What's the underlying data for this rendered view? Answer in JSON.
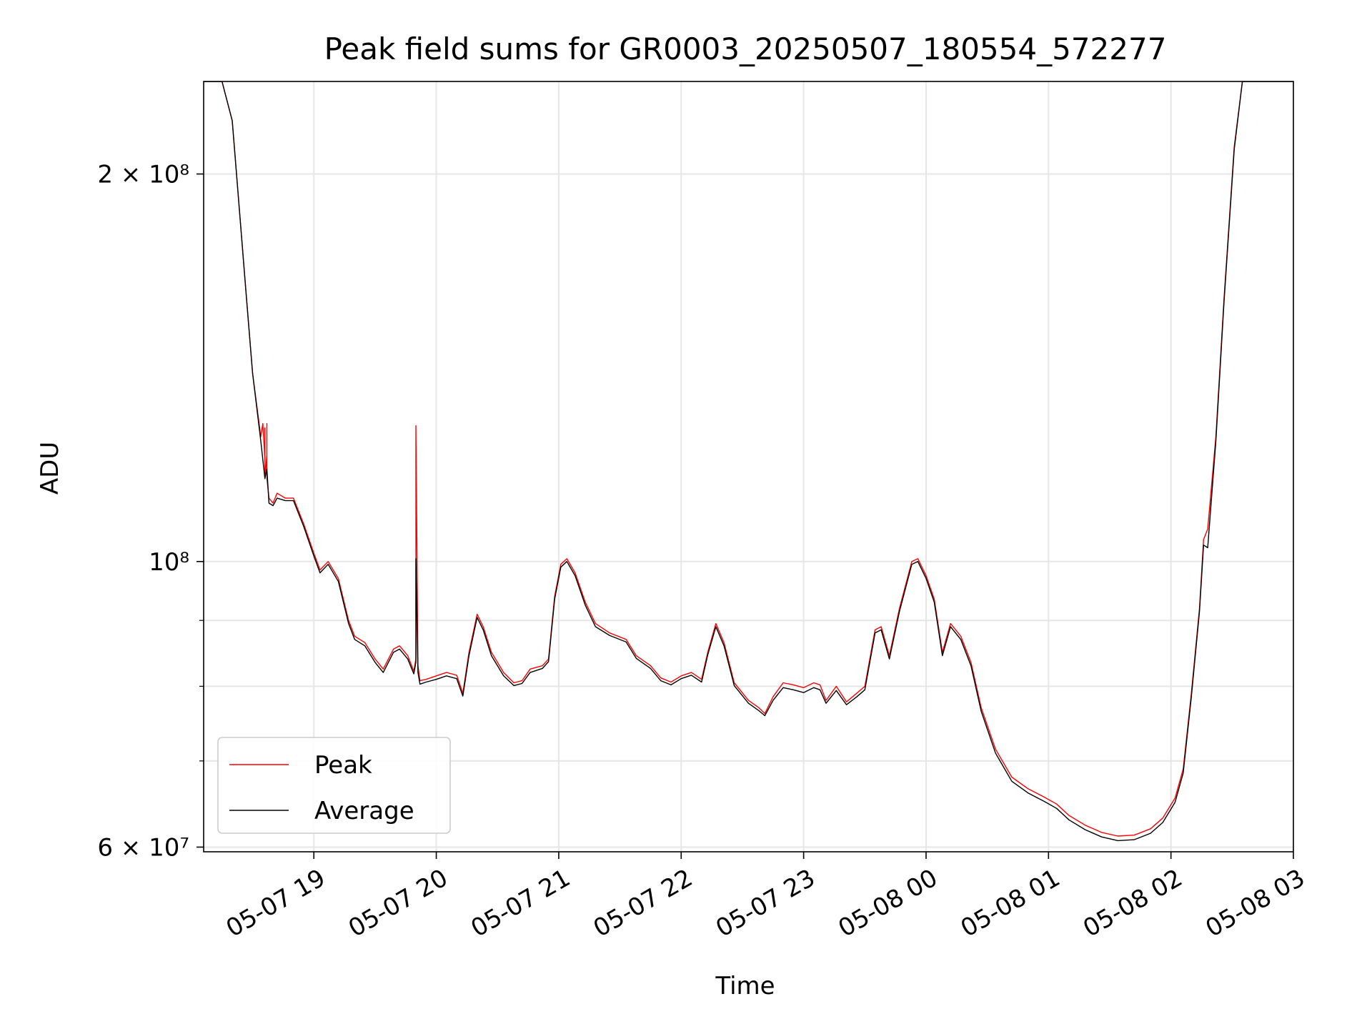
{
  "chart_data": {
    "type": "line",
    "title": "Peak field sums for GR0003_20250507_180554_572277",
    "xlabel": "Time",
    "ylabel": "ADU",
    "yscale": "log",
    "xlim": [
      "2025-05-07 18:06",
      "2025-05-08 03:00"
    ],
    "ylim": [
      59500000,
      236000000
    ],
    "grid": true,
    "legend_position": "bottom-left",
    "x_ticks": [
      {
        "t": "2025-05-07 19:00",
        "label": "05-07 19"
      },
      {
        "t": "2025-05-07 20:00",
        "label": "05-07 20"
      },
      {
        "t": "2025-05-07 21:00",
        "label": "05-07 21"
      },
      {
        "t": "2025-05-07 22:00",
        "label": "05-07 22"
      },
      {
        "t": "2025-05-07 23:00",
        "label": "05-07 23"
      },
      {
        "t": "2025-05-08 00:00",
        "label": "05-08 00"
      },
      {
        "t": "2025-05-08 01:00",
        "label": "05-08 01"
      },
      {
        "t": "2025-05-08 02:00",
        "label": "05-08 02"
      },
      {
        "t": "2025-05-08 03:00",
        "label": "05-08 03"
      }
    ],
    "y_ticks_major": [
      {
        "v": 60000000,
        "label": "6 × 10⁷"
      },
      {
        "v": 100000000,
        "label": "10⁸"
      },
      {
        "v": 200000000,
        "label": "2 × 10⁸"
      }
    ],
    "y_ticks_minor": [
      70000000,
      80000000,
      90000000
    ],
    "series": [
      {
        "name": "Peak",
        "color": "#ff0000",
        "points": [
          [
            "2025-05-07 18:06",
            236000000
          ],
          [
            "2025-05-07 18:15",
            236000000
          ],
          [
            "2025-05-07 18:20",
            220000000
          ],
          [
            "2025-05-07 18:27",
            160000000
          ],
          [
            "2025-05-07 18:30",
            140000000
          ],
          [
            "2025-05-07 18:34",
            125000000
          ],
          [
            "2025-05-07 18:35",
            128000000
          ],
          [
            "2025-05-07 18:36",
            120000000
          ],
          [
            "2025-05-07 18:36",
            127000000
          ],
          [
            "2025-05-07 18:36",
            116000000
          ],
          [
            "2025-05-07 18:37",
            121000000
          ],
          [
            "2025-05-07 18:37",
            128000000
          ],
          [
            "2025-05-07 18:37",
            116000000
          ],
          [
            "2025-05-07 18:38",
            112000000
          ],
          [
            "2025-05-07 18:40",
            111000000
          ],
          [
            "2025-05-07 18:42",
            113000000
          ],
          [
            "2025-05-07 18:46",
            112000000
          ],
          [
            "2025-05-07 18:50",
            112000000
          ],
          [
            "2025-05-07 18:55",
            107000000
          ],
          [
            "2025-05-07 19:00",
            101500000
          ],
          [
            "2025-05-07 19:03",
            98500000
          ],
          [
            "2025-05-07 19:07",
            100000000
          ],
          [
            "2025-05-07 19:12",
            97000000
          ],
          [
            "2025-05-07 19:17",
            90000000
          ],
          [
            "2025-05-07 19:20",
            87500000
          ],
          [
            "2025-05-07 19:25",
            86500000
          ],
          [
            "2025-05-07 19:30",
            84000000
          ],
          [
            "2025-05-07 19:34",
            82500000
          ],
          [
            "2025-05-07 19:39",
            85500000
          ],
          [
            "2025-05-07 19:42",
            86000000
          ],
          [
            "2025-05-07 19:46",
            84500000
          ],
          [
            "2025-05-07 19:49",
            82200000
          ],
          [
            "2025-05-07 19:50",
            84000000
          ],
          [
            "2025-05-07 19:50",
            127500000
          ],
          [
            "2025-05-07 19:51",
            83000000
          ],
          [
            "2025-05-07 19:52",
            80800000
          ],
          [
            "2025-05-07 19:55",
            81000000
          ],
          [
            "2025-05-07 20:00",
            81500000
          ],
          [
            "2025-05-07 20:05",
            82000000
          ],
          [
            "2025-05-07 20:10",
            81600000
          ],
          [
            "2025-05-07 20:13",
            79000000
          ],
          [
            "2025-05-07 20:16",
            85000000
          ],
          [
            "2025-05-07 20:20",
            91000000
          ],
          [
            "2025-05-07 20:23",
            89000000
          ],
          [
            "2025-05-07 20:27",
            85000000
          ],
          [
            "2025-05-07 20:33",
            82000000
          ],
          [
            "2025-05-07 20:38",
            80500000
          ],
          [
            "2025-05-07 20:42",
            80800000
          ],
          [
            "2025-05-07 20:46",
            82500000
          ],
          [
            "2025-05-07 20:52",
            83000000
          ],
          [
            "2025-05-07 20:55",
            84000000
          ],
          [
            "2025-05-07 20:58",
            94000000
          ],
          [
            "2025-05-07 21:01",
            99500000
          ],
          [
            "2025-05-07 21:04",
            100500000
          ],
          [
            "2025-05-07 21:08",
            98000000
          ],
          [
            "2025-05-07 21:13",
            93000000
          ],
          [
            "2025-05-07 21:18",
            89500000
          ],
          [
            "2025-05-07 21:25",
            88000000
          ],
          [
            "2025-05-07 21:33",
            87000000
          ],
          [
            "2025-05-07 21:38",
            84500000
          ],
          [
            "2025-05-07 21:45",
            83000000
          ],
          [
            "2025-05-07 21:50",
            81200000
          ],
          [
            "2025-05-07 21:55",
            80600000
          ],
          [
            "2025-05-07 22:00",
            81500000
          ],
          [
            "2025-05-07 22:05",
            82000000
          ],
          [
            "2025-05-07 22:10",
            81000000
          ],
          [
            "2025-05-07 22:13",
            85000000
          ],
          [
            "2025-05-07 22:17",
            89500000
          ],
          [
            "2025-05-07 22:21",
            86500000
          ],
          [
            "2025-05-07 22:26",
            80500000
          ],
          [
            "2025-05-07 22:33",
            78000000
          ],
          [
            "2025-05-07 22:38",
            77000000
          ],
          [
            "2025-05-07 22:41",
            76200000
          ],
          [
            "2025-05-07 22:45",
            78500000
          ],
          [
            "2025-05-07 22:50",
            80500000
          ],
          [
            "2025-05-07 22:55",
            80200000
          ],
          [
            "2025-05-07 23:00",
            79800000
          ],
          [
            "2025-05-07 23:05",
            80500000
          ],
          [
            "2025-05-07 23:08",
            80200000
          ],
          [
            "2025-05-07 23:11",
            78000000
          ],
          [
            "2025-05-07 23:16",
            80000000
          ],
          [
            "2025-05-07 23:21",
            77800000
          ],
          [
            "2025-05-07 23:26",
            79000000
          ],
          [
            "2025-05-07 23:30",
            80000000
          ],
          [
            "2025-05-07 23:35",
            88500000
          ],
          [
            "2025-05-07 23:38",
            89000000
          ],
          [
            "2025-05-07 23:42",
            84500000
          ],
          [
            "2025-05-07 23:47",
            92000000
          ],
          [
            "2025-05-07 23:53",
            100000000
          ],
          [
            "2025-05-07 23:56",
            100500000
          ],
          [
            "2025-05-08 00:00",
            97500000
          ],
          [
            "2025-05-08 00:04",
            93500000
          ],
          [
            "2025-05-08 00:08",
            85000000
          ],
          [
            "2025-05-08 00:12",
            89500000
          ],
          [
            "2025-05-08 00:17",
            87500000
          ],
          [
            "2025-05-08 00:22",
            83500000
          ],
          [
            "2025-05-08 00:27",
            77000000
          ],
          [
            "2025-05-08 00:34",
            71500000
          ],
          [
            "2025-05-08 00:42",
            68000000
          ],
          [
            "2025-05-08 00:50",
            66600000
          ],
          [
            "2025-05-08 00:58",
            65600000
          ],
          [
            "2025-05-08 01:04",
            64800000
          ],
          [
            "2025-05-08 01:10",
            63500000
          ],
          [
            "2025-05-08 01:18",
            62400000
          ],
          [
            "2025-05-08 01:26",
            61600000
          ],
          [
            "2025-05-08 01:34",
            61200000
          ],
          [
            "2025-05-08 01:42",
            61300000
          ],
          [
            "2025-05-08 01:50",
            62000000
          ],
          [
            "2025-05-08 01:56",
            63200000
          ],
          [
            "2025-05-08 02:02",
            65500000
          ],
          [
            "2025-05-08 02:06",
            69000000
          ],
          [
            "2025-05-08 02:10",
            79000000
          ],
          [
            "2025-05-08 02:14",
            92000000
          ],
          [
            "2025-05-08 02:16",
            104000000
          ],
          [
            "2025-05-08 02:18",
            106000000
          ],
          [
            "2025-05-08 02:22",
            125000000
          ],
          [
            "2025-05-08 02:26",
            160000000
          ],
          [
            "2025-05-08 02:31",
            210000000
          ],
          [
            "2025-05-08 02:35",
            236000000
          ],
          [
            "2025-05-08 03:00",
            236000000
          ]
        ]
      },
      {
        "name": "Average",
        "color": "#000000",
        "points": [
          [
            "2025-05-07 18:06",
            236000000
          ],
          [
            "2025-05-07 18:15",
            236000000
          ],
          [
            "2025-05-07 18:20",
            220000000
          ],
          [
            "2025-05-07 18:27",
            160000000
          ],
          [
            "2025-05-07 18:30",
            140000000
          ],
          [
            "2025-05-07 18:34",
            124000000
          ],
          [
            "2025-05-07 18:36",
            116000000
          ],
          [
            "2025-05-07 18:37",
            118000000
          ],
          [
            "2025-05-07 18:38",
            111000000
          ],
          [
            "2025-05-07 18:40",
            110500000
          ],
          [
            "2025-05-07 18:42",
            112000000
          ],
          [
            "2025-05-07 18:46",
            111500000
          ],
          [
            "2025-05-07 18:50",
            111500000
          ],
          [
            "2025-05-07 18:55",
            106500000
          ],
          [
            "2025-05-07 19:00",
            101000000
          ],
          [
            "2025-05-07 19:03",
            98000000
          ],
          [
            "2025-05-07 19:07",
            99500000
          ],
          [
            "2025-05-07 19:12",
            96500000
          ],
          [
            "2025-05-07 19:17",
            89500000
          ],
          [
            "2025-05-07 19:20",
            87000000
          ],
          [
            "2025-05-07 19:25",
            86000000
          ],
          [
            "2025-05-07 19:30",
            83500000
          ],
          [
            "2025-05-07 19:34",
            82000000
          ],
          [
            "2025-05-07 19:39",
            85000000
          ],
          [
            "2025-05-07 19:42",
            85500000
          ],
          [
            "2025-05-07 19:46",
            84000000
          ],
          [
            "2025-05-07 19:49",
            81800000
          ],
          [
            "2025-05-07 19:50",
            83500000
          ],
          [
            "2025-05-07 19:50",
            100500000
          ],
          [
            "2025-05-07 19:51",
            82000000
          ],
          [
            "2025-05-07 19:52",
            80300000
          ],
          [
            "2025-05-07 19:55",
            80600000
          ],
          [
            "2025-05-07 20:00",
            81000000
          ],
          [
            "2025-05-07 20:05",
            81500000
          ],
          [
            "2025-05-07 20:10",
            81100000
          ],
          [
            "2025-05-07 20:13",
            78600000
          ],
          [
            "2025-05-07 20:16",
            84500000
          ],
          [
            "2025-05-07 20:20",
            90500000
          ],
          [
            "2025-05-07 20:23",
            88500000
          ],
          [
            "2025-05-07 20:27",
            84500000
          ],
          [
            "2025-05-07 20:33",
            81500000
          ],
          [
            "2025-05-07 20:38",
            80100000
          ],
          [
            "2025-05-07 20:42",
            80400000
          ],
          [
            "2025-05-07 20:46",
            82000000
          ],
          [
            "2025-05-07 20:52",
            82600000
          ],
          [
            "2025-05-07 20:55",
            83600000
          ],
          [
            "2025-05-07 20:58",
            93500000
          ],
          [
            "2025-05-07 21:01",
            99000000
          ],
          [
            "2025-05-07 21:04",
            100000000
          ],
          [
            "2025-05-07 21:08",
            97500000
          ],
          [
            "2025-05-07 21:13",
            92500000
          ],
          [
            "2025-05-07 21:18",
            89000000
          ],
          [
            "2025-05-07 21:25",
            87600000
          ],
          [
            "2025-05-07 21:33",
            86600000
          ],
          [
            "2025-05-07 21:38",
            84100000
          ],
          [
            "2025-05-07 21:45",
            82600000
          ],
          [
            "2025-05-07 21:50",
            80800000
          ],
          [
            "2025-05-07 21:55",
            80200000
          ],
          [
            "2025-05-07 22:00",
            81100000
          ],
          [
            "2025-05-07 22:05",
            81600000
          ],
          [
            "2025-05-07 22:10",
            80600000
          ],
          [
            "2025-05-07 22:13",
            84600000
          ],
          [
            "2025-05-07 22:17",
            89000000
          ],
          [
            "2025-05-07 22:21",
            86000000
          ],
          [
            "2025-05-07 22:26",
            80100000
          ],
          [
            "2025-05-07 22:33",
            77600000
          ],
          [
            "2025-05-07 22:38",
            76600000
          ],
          [
            "2025-05-07 22:41",
            75900000
          ],
          [
            "2025-05-07 22:45",
            78000000
          ],
          [
            "2025-05-07 22:50",
            79800000
          ],
          [
            "2025-05-07 22:55",
            79500000
          ],
          [
            "2025-05-07 23:00",
            79100000
          ],
          [
            "2025-05-07 23:05",
            79800000
          ],
          [
            "2025-05-07 23:08",
            79500000
          ],
          [
            "2025-05-07 23:11",
            77600000
          ],
          [
            "2025-05-07 23:16",
            79400000
          ],
          [
            "2025-05-07 23:21",
            77400000
          ],
          [
            "2025-05-07 23:26",
            78500000
          ],
          [
            "2025-05-07 23:30",
            79500000
          ],
          [
            "2025-05-07 23:35",
            88000000
          ],
          [
            "2025-05-07 23:38",
            88500000
          ],
          [
            "2025-05-07 23:42",
            84000000
          ],
          [
            "2025-05-07 23:47",
            91500000
          ],
          [
            "2025-05-07 23:53",
            99500000
          ],
          [
            "2025-05-07 23:56",
            100000000
          ],
          [
            "2025-05-08 00:00",
            97000000
          ],
          [
            "2025-05-08 00:04",
            93000000
          ],
          [
            "2025-05-08 00:08",
            84500000
          ],
          [
            "2025-05-08 00:12",
            89000000
          ],
          [
            "2025-05-08 00:17",
            87000000
          ],
          [
            "2025-05-08 00:22",
            83000000
          ],
          [
            "2025-05-08 00:27",
            76500000
          ],
          [
            "2025-05-08 00:34",
            71000000
          ],
          [
            "2025-05-08 00:42",
            67500000
          ],
          [
            "2025-05-08 00:50",
            66100000
          ],
          [
            "2025-05-08 00:58",
            65100000
          ],
          [
            "2025-05-08 01:04",
            64300000
          ],
          [
            "2025-05-08 01:10",
            63000000
          ],
          [
            "2025-05-08 01:18",
            61900000
          ],
          [
            "2025-05-08 01:26",
            61100000
          ],
          [
            "2025-05-08 01:34",
            60700000
          ],
          [
            "2025-05-08 01:42",
            60800000
          ],
          [
            "2025-05-08 01:50",
            61500000
          ],
          [
            "2025-05-08 01:56",
            62700000
          ],
          [
            "2025-05-08 02:02",
            65000000
          ],
          [
            "2025-05-08 02:06",
            68500000
          ],
          [
            "2025-05-08 02:10",
            78500000
          ],
          [
            "2025-05-08 02:14",
            91500000
          ],
          [
            "2025-05-08 02:16",
            103000000
          ],
          [
            "2025-05-08 02:18",
            102500000
          ],
          [
            "2025-05-08 02:22",
            124000000
          ],
          [
            "2025-05-08 02:26",
            159000000
          ],
          [
            "2025-05-08 02:31",
            209000000
          ],
          [
            "2025-05-08 02:35",
            236000000
          ],
          [
            "2025-05-08 03:00",
            236000000
          ]
        ]
      }
    ]
  }
}
